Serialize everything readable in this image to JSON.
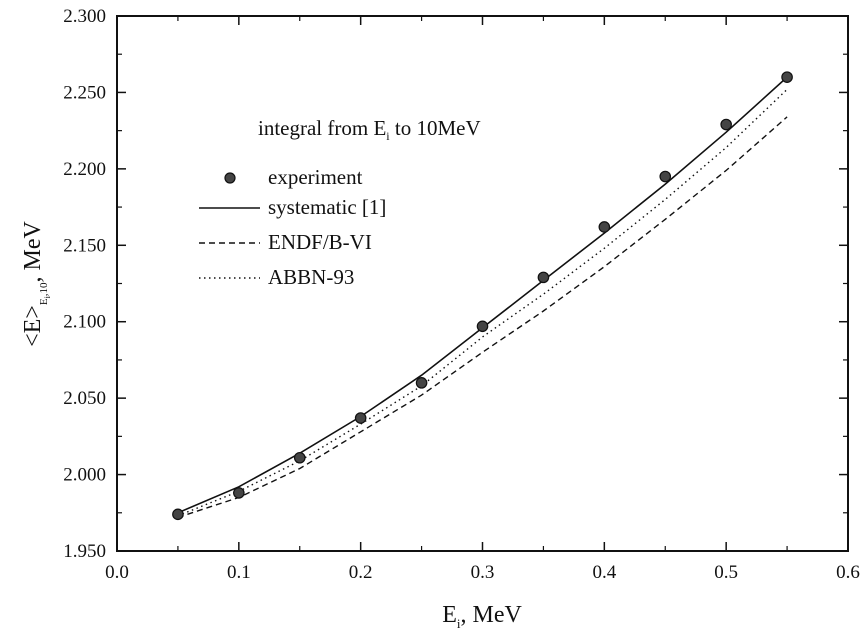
{
  "chart_data": {
    "type": "line",
    "title": "",
    "annotation": "integral from E",
    "annotation_sub": "i",
    "annotation_tail": " to 10MeV",
    "xlabel": "E",
    "xlabel_sub": "i",
    "xlabel_unit": ", MeV",
    "ylabel": "<E>",
    "ylabel_sub": "E",
    "ylabel_sub2": "i",
    "ylabel_sub3": ",10",
    "ylabel_unit": ", MeV",
    "xlim": [
      0.0,
      0.6
    ],
    "ylim": [
      1.95,
      2.3
    ],
    "x_ticks": [
      0.0,
      0.1,
      0.2,
      0.3,
      0.4,
      0.5,
      0.6
    ],
    "x_tick_labels": [
      "0.0",
      "0.1",
      "0.2",
      "0.3",
      "0.4",
      "0.5",
      "0.6"
    ],
    "y_ticks": [
      1.95,
      2.0,
      2.05,
      2.1,
      2.15,
      2.2,
      2.25,
      2.3
    ],
    "y_tick_labels": [
      "1.950",
      "2.000",
      "2.050",
      "2.100",
      "2.150",
      "2.200",
      "2.250",
      "2.300"
    ],
    "grid": false,
    "legend_position": "upper-left",
    "series": [
      {
        "name": "experiment",
        "style": "markers",
        "x": [
          0.05,
          0.1,
          0.15,
          0.2,
          0.25,
          0.3,
          0.35,
          0.4,
          0.45,
          0.5,
          0.55
        ],
        "y": [
          1.974,
          1.988,
          2.011,
          2.037,
          2.06,
          2.097,
          2.129,
          2.162,
          2.195,
          2.229,
          2.26
        ]
      },
      {
        "name": "systematic [1]",
        "style": "solid",
        "x": [
          0.05,
          0.1,
          0.15,
          0.2,
          0.25,
          0.3,
          0.35,
          0.4,
          0.45,
          0.5,
          0.55
        ],
        "y": [
          1.975,
          1.992,
          2.014,
          2.038,
          2.065,
          2.096,
          2.127,
          2.158,
          2.19,
          2.224,
          2.26
        ]
      },
      {
        "name": "ENDF/B-VI",
        "style": "dashed",
        "x": [
          0.05,
          0.1,
          0.15,
          0.2,
          0.25,
          0.3,
          0.35,
          0.4,
          0.45,
          0.5,
          0.55
        ],
        "y": [
          1.972,
          1.985,
          2.004,
          2.028,
          2.052,
          2.08,
          2.107,
          2.136,
          2.167,
          2.199,
          2.234
        ]
      },
      {
        "name": "ABBN-93",
        "style": "dotted",
        "x": [
          0.05,
          0.1,
          0.15,
          0.2,
          0.25,
          0.3,
          0.35,
          0.4,
          0.45,
          0.5,
          0.55
        ],
        "y": [
          1.973,
          1.989,
          2.009,
          2.033,
          2.058,
          2.09,
          2.118,
          2.148,
          2.18,
          2.214,
          2.252
        ]
      }
    ]
  }
}
